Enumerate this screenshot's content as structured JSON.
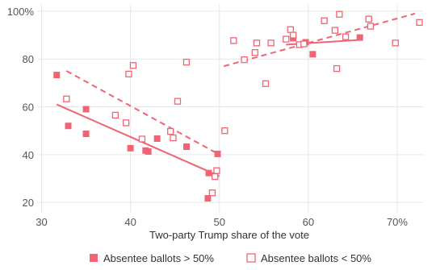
{
  "chart_data": {
    "type": "scatter",
    "title": "",
    "xlabel": "Two-party Trump share of the vote",
    "ylabel": "",
    "xlim": [
      29.5,
      73
    ],
    "ylim": [
      16,
      103
    ],
    "x_ticks": [
      30,
      40,
      50,
      60,
      70
    ],
    "x_tick_labels": [
      "30",
      "40",
      "50",
      "60",
      "70%"
    ],
    "y_ticks": [
      20,
      40,
      60,
      80,
      100
    ],
    "y_tick_labels": [
      "20",
      "40",
      "60",
      "80",
      "100%"
    ],
    "grid": true,
    "legend_position": "bottom",
    "colors": {
      "series": "#f06473",
      "grid": "#e6e6e6"
    },
    "series": [
      {
        "name": "Absentee ballots > 50%",
        "marker": "filled-square",
        "points": [
          {
            "x": 31.7,
            "y": 73.3
          },
          {
            "x": 33.0,
            "y": 52.0
          },
          {
            "x": 35.0,
            "y": 59.0
          },
          {
            "x": 35.0,
            "y": 48.7
          },
          {
            "x": 40.0,
            "y": 42.7
          },
          {
            "x": 41.7,
            "y": 41.7
          },
          {
            "x": 42.0,
            "y": 41.3
          },
          {
            "x": 43.0,
            "y": 46.7
          },
          {
            "x": 46.3,
            "y": 43.3
          },
          {
            "x": 48.7,
            "y": 21.7
          },
          {
            "x": 48.8,
            "y": 32.3
          },
          {
            "x": 49.8,
            "y": 40.3
          },
          {
            "x": 58.3,
            "y": 88.7
          },
          {
            "x": 59.7,
            "y": 87.0
          },
          {
            "x": 60.5,
            "y": 82.0
          },
          {
            "x": 65.8,
            "y": 89.0
          }
        ],
        "trend": [
          {
            "x1": 31.7,
            "y1": 61.0,
            "x2": 50.0,
            "y2": 31.0
          },
          {
            "x1": 57.5,
            "y1": 86.0,
            "x2": 65.8,
            "y2": 88.0
          }
        ]
      },
      {
        "name": "Absentee ballots < 50%",
        "marker": "hollow-square",
        "points": [
          {
            "x": 32.8,
            "y": 63.3
          },
          {
            "x": 38.3,
            "y": 56.5
          },
          {
            "x": 39.5,
            "y": 53.3
          },
          {
            "x": 39.8,
            "y": 73.7
          },
          {
            "x": 40.3,
            "y": 77.3
          },
          {
            "x": 41.3,
            "y": 46.5
          },
          {
            "x": 44.5,
            "y": 49.7
          },
          {
            "x": 44.8,
            "y": 47.0
          },
          {
            "x": 45.3,
            "y": 62.3
          },
          {
            "x": 46.3,
            "y": 78.7
          },
          {
            "x": 49.2,
            "y": 24.0
          },
          {
            "x": 49.5,
            "y": 30.8
          },
          {
            "x": 49.7,
            "y": 33.3
          },
          {
            "x": 50.6,
            "y": 50.0
          },
          {
            "x": 51.6,
            "y": 87.7
          },
          {
            "x": 52.8,
            "y": 79.7
          },
          {
            "x": 54.0,
            "y": 82.7
          },
          {
            "x": 54.2,
            "y": 86.7
          },
          {
            "x": 55.2,
            "y": 69.7
          },
          {
            "x": 55.8,
            "y": 86.7
          },
          {
            "x": 57.5,
            "y": 88.3
          },
          {
            "x": 58.0,
            "y": 92.3
          },
          {
            "x": 58.3,
            "y": 90.0
          },
          {
            "x": 59.0,
            "y": 86.0
          },
          {
            "x": 59.5,
            "y": 86.3
          },
          {
            "x": 61.8,
            "y": 96.0
          },
          {
            "x": 63.0,
            "y": 92.0
          },
          {
            "x": 63.2,
            "y": 76.0
          },
          {
            "x": 63.5,
            "y": 98.7
          },
          {
            "x": 64.2,
            "y": 89.3
          },
          {
            "x": 66.8,
            "y": 96.7
          },
          {
            "x": 67.0,
            "y": 93.7
          },
          {
            "x": 69.8,
            "y": 86.7
          },
          {
            "x": 72.5,
            "y": 95.3
          }
        ],
        "trend": [
          {
            "x1": 32.8,
            "y1": 75.0,
            "x2": 50.0,
            "y2": 40.0
          },
          {
            "x1": 50.5,
            "y1": 77.0,
            "x2": 72.0,
            "y2": 99.0
          }
        ]
      }
    ]
  }
}
